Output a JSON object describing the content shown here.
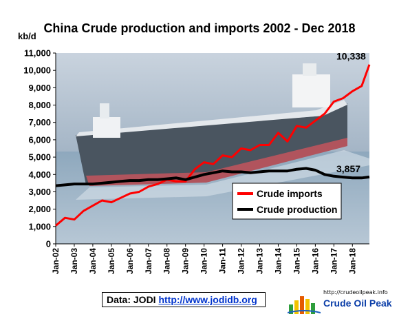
{
  "chart_data": {
    "type": "line",
    "title": "China Crude production and imports 2002 - Dec 2018",
    "ylabel": "kb/d",
    "ylim": [
      0,
      11000
    ],
    "yticks": [
      "0",
      "1,000",
      "2,000",
      "3,000",
      "4,000",
      "5,000",
      "6,000",
      "7,000",
      "8,000",
      "9,000",
      "10,000",
      "11,000"
    ],
    "xticks": [
      "Jan-02",
      "Jan-03",
      "Jan-04",
      "Jan-05",
      "Jan-06",
      "Jan-07",
      "Jan-08",
      "Jan-09",
      "Jan-10",
      "Jan-11",
      "Jan-12",
      "Jan-13",
      "Jan-14",
      "Jan-15",
      "Jan-16",
      "Jan-17",
      "Jan-18"
    ],
    "x_start": "2002-01",
    "x_end": "2018-12",
    "legend_position": "right",
    "grid": false,
    "series": [
      {
        "name": "Crude imports",
        "color": "#ff0000",
        "x": [
          "2002-01",
          "2002-07",
          "2003-01",
          "2003-07",
          "2004-01",
          "2004-07",
          "2005-01",
          "2005-07",
          "2006-01",
          "2006-07",
          "2007-01",
          "2007-07",
          "2008-01",
          "2008-07",
          "2009-01",
          "2009-07",
          "2010-01",
          "2010-07",
          "2011-01",
          "2011-07",
          "2012-01",
          "2012-07",
          "2013-01",
          "2013-07",
          "2014-01",
          "2014-07",
          "2015-01",
          "2015-07",
          "2016-01",
          "2016-07",
          "2017-01",
          "2017-07",
          "2018-01",
          "2018-07",
          "2018-12"
        ],
        "values": [
          1050,
          1500,
          1400,
          1900,
          2200,
          2500,
          2400,
          2650,
          2900,
          3000,
          3300,
          3450,
          3700,
          3600,
          3600,
          4300,
          4700,
          4600,
          5100,
          5000,
          5500,
          5400,
          5700,
          5700,
          6400,
          5900,
          6800,
          6700,
          7100,
          7500,
          8200,
          8400,
          8800,
          9100,
          10338
        ]
      },
      {
        "name": "Crude production",
        "color": "#000000",
        "x": [
          "2002-01",
          "2002-07",
          "2003-01",
          "2003-07",
          "2004-01",
          "2004-07",
          "2005-01",
          "2005-07",
          "2006-01",
          "2006-07",
          "2007-01",
          "2007-07",
          "2008-01",
          "2008-07",
          "2009-01",
          "2009-07",
          "2010-01",
          "2010-07",
          "2011-01",
          "2011-07",
          "2012-01",
          "2012-07",
          "2013-01",
          "2013-07",
          "2014-01",
          "2014-07",
          "2015-01",
          "2015-07",
          "2016-01",
          "2016-07",
          "2017-01",
          "2017-07",
          "2018-01",
          "2018-07",
          "2018-12"
        ],
        "values": [
          3350,
          3400,
          3450,
          3450,
          3450,
          3500,
          3550,
          3600,
          3650,
          3650,
          3700,
          3700,
          3750,
          3800,
          3700,
          3850,
          4000,
          4100,
          4200,
          4150,
          4150,
          4100,
          4150,
          4200,
          4200,
          4200,
          4300,
          4350,
          4250,
          4000,
          3900,
          3850,
          3800,
          3800,
          3857
        ]
      }
    ],
    "annotations": [
      {
        "text": "10,338",
        "x": "2018-12",
        "y": 10338
      },
      {
        "text": "3,857",
        "x": "2018-12",
        "y": 3857
      }
    ]
  },
  "source": {
    "prefix": "Data: JODI",
    "link": "http://www.jodidb.org"
  },
  "logo": {
    "url": "http://crudeoilpeak.info",
    "name": "Crude Oil Peak"
  },
  "colors": {
    "background_water": "#9db4c8",
    "ship_hull": "#55606a",
    "ship_deck": "#e2e6ea"
  }
}
